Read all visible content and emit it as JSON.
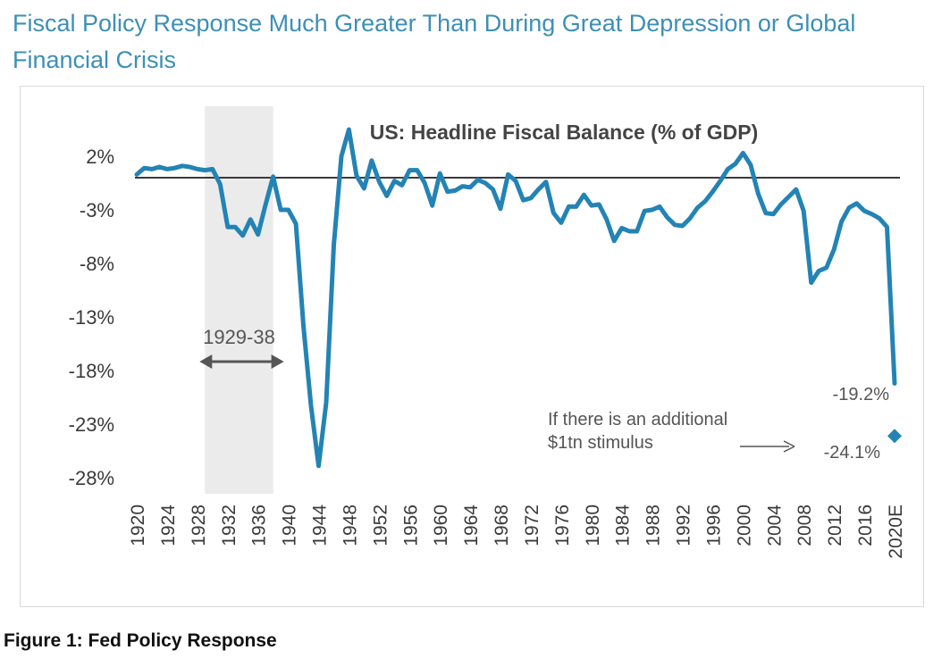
{
  "page": {
    "title": "Fiscal Policy Response Much Greater Than During Great Depression or Global Financial Crisis",
    "caption": "Figure 1:  Fed Policy Response"
  },
  "chart_data": {
    "type": "line",
    "title": "US: Headline Fiscal Balance (% of GDP)",
    "xlabel": "",
    "ylabel": "",
    "ylim": [
      -28,
      2
    ],
    "yticks": [
      2,
      -3,
      -8,
      -13,
      -18,
      -23,
      -28
    ],
    "ytick_labels": [
      "2%",
      "-3%",
      "-8%",
      "-13%",
      "-18%",
      "-23%",
      "-28%"
    ],
    "xlim": [
      1920,
      2020
    ],
    "xtick_labels": [
      "1920",
      "1924",
      "1928",
      "1932",
      "1936",
      "1940",
      "1944",
      "1948",
      "1952",
      "1956",
      "1960",
      "1964",
      "1968",
      "1972",
      "1976",
      "1980",
      "1984",
      "1988",
      "1992",
      "1996",
      "2000",
      "2004",
      "2008",
      "2012",
      "2016",
      "2020E"
    ],
    "grid": false,
    "line_color": "#2383b5",
    "zero_line": true,
    "shaded_period": {
      "start": 1929,
      "end": 1938,
      "label": "1929-38",
      "color": "#ebebeb"
    },
    "series": [
      {
        "x": [
          1920,
          1921,
          1922,
          1923,
          1924,
          1925,
          1926,
          1927,
          1928,
          1929,
          1930,
          1931,
          1932,
          1933,
          1934,
          1935,
          1936,
          1937,
          1938,
          1939,
          1940,
          1941,
          1942,
          1943,
          1944,
          1945,
          1946,
          1947,
          1948,
          1949,
          1950,
          1951,
          1952,
          1953,
          1954,
          1955,
          1956,
          1957,
          1958,
          1959,
          1960,
          1961,
          1962,
          1963,
          1964,
          1965,
          1966,
          1967,
          1968,
          1969,
          1970,
          1971,
          1972,
          1973,
          1974,
          1975,
          1976,
          1977,
          1978,
          1979,
          1980,
          1981,
          1982,
          1983,
          1984,
          1985,
          1986,
          1987,
          1988,
          1989,
          1990,
          1991,
          1992,
          1993,
          1994,
          1995,
          1996,
          1997,
          1998,
          1999,
          2000,
          2001,
          2002,
          2003,
          2004,
          2005,
          2006,
          2007,
          2008,
          2009,
          2010,
          2011,
          2012,
          2013,
          2014,
          2015,
          2016,
          2017,
          2018,
          2019,
          2020
        ],
        "values": [
          0.3,
          0.9,
          0.8,
          1.0,
          0.8,
          0.9,
          1.1,
          1.0,
          0.8,
          0.7,
          0.8,
          -0.6,
          -4.6,
          -4.6,
          -5.4,
          -3.9,
          -5.3,
          -2.5,
          0.1,
          -3.0,
          -3.0,
          -4.3,
          -13.9,
          -21.3,
          -26.9,
          -21.0,
          -6.3,
          2.0,
          4.5,
          0.2,
          -1.0,
          1.6,
          -0.4,
          -1.7,
          -0.3,
          -0.7,
          0.7,
          0.7,
          -0.5,
          -2.6,
          0.4,
          -1.3,
          -1.2,
          -0.8,
          -0.9,
          -0.2,
          -0.5,
          -1.1,
          -2.9,
          0.3,
          -0.3,
          -2.1,
          -1.9,
          -1.1,
          -0.4,
          -3.3,
          -4.2,
          -2.7,
          -2.7,
          -1.6,
          -2.6,
          -2.5,
          -3.9,
          -5.9,
          -4.7,
          -5.0,
          -5.0,
          -3.1,
          -3.0,
          -2.7,
          -3.7,
          -4.4,
          -4.5,
          -3.8,
          -2.8,
          -2.2,
          -1.3,
          -0.3,
          0.8,
          1.3,
          2.3,
          1.2,
          -1.5,
          -3.3,
          -3.4,
          -2.5,
          -1.8,
          -1.1,
          -3.1,
          -9.8,
          -8.7,
          -8.4,
          -6.7,
          -4.1,
          -2.8,
          -2.4,
          -3.1,
          -3.4,
          -3.8,
          -4.6,
          -19.2
        ]
      }
    ],
    "annotations": [
      {
        "text": "-19.2%",
        "x": 2020,
        "y": -19.2
      },
      {
        "text": "If there is an additional",
        "x": 1972,
        "y": -21
      },
      {
        "text": "$1tn stimulus",
        "x": 1972,
        "y": -23
      },
      {
        "text": "-24.1%",
        "x": 2020,
        "y": -24.1,
        "marker": "diamond"
      }
    ]
  }
}
